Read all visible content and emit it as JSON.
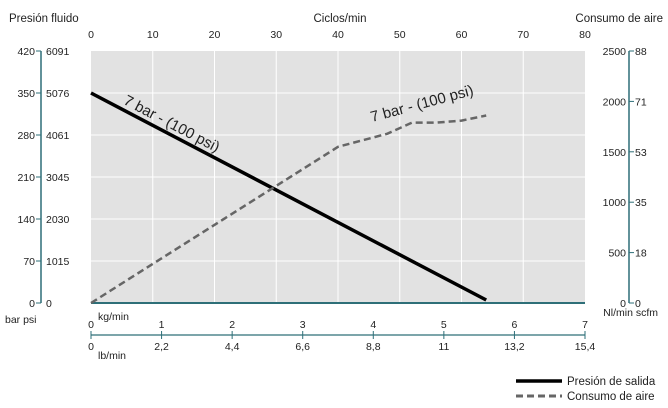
{
  "chart_data": {
    "type": "line",
    "headers": {
      "left": "Presión fluido",
      "top": "Ciclos/min",
      "right": "Consumo de aire"
    },
    "units": {
      "left_bottom": "bar psi",
      "kg": "kg/min",
      "lb": "lb/min",
      "right_bottom": "Nl/min scfm"
    },
    "axes": {
      "cycles": {
        "min": 0,
        "max": 80,
        "ticks": [
          "0",
          "10",
          "20",
          "30",
          "40",
          "50",
          "60",
          "70",
          "80"
        ]
      },
      "bar": {
        "min": 0,
        "max": 420,
        "ticks": [
          "0",
          "70",
          "140",
          "210",
          "280",
          "350",
          "420"
        ]
      },
      "psi": {
        "ticks": [
          "0",
          "1015",
          "2030",
          "3045",
          "4061",
          "5076",
          "6091"
        ]
      },
      "nl_min": {
        "min": 0,
        "max": 2500,
        "ticks": [
          "0",
          "500",
          "1000",
          "1500",
          "2000",
          "2500"
        ]
      },
      "scfm": {
        "ticks": [
          "0",
          "18",
          "35",
          "53",
          "71",
          "88"
        ]
      },
      "kg_min": {
        "min": 0,
        "max": 7,
        "ticks": [
          "0",
          "1",
          "2",
          "3",
          "4",
          "5",
          "6",
          "7"
        ]
      },
      "lb_min": {
        "ticks": [
          "0",
          "2,2",
          "4,4",
          "6,6",
          "8,8",
          "11",
          "13,2",
          "15,4"
        ]
      }
    },
    "series": [
      {
        "name": "Presión de salida",
        "label": "7 bar - (100 psi)",
        "axis": "bar",
        "color": "#000000",
        "style": "solid",
        "x": [
          0,
          64
        ],
        "y": [
          350,
          5
        ]
      },
      {
        "name": "Consumo de aire",
        "label": "7 bar - (100 psi)",
        "axis": "nl_min",
        "color": "#666666",
        "style": "dashed",
        "x": [
          0,
          40,
          48,
          52,
          56,
          60,
          64
        ],
        "y": [
          0,
          1550,
          1680,
          1790,
          1790,
          1810,
          1860
        ]
      }
    ],
    "legend": {
      "position": "bottom-right",
      "items": [
        {
          "label": "Presión de salida",
          "color": "#000000",
          "style": "solid"
        },
        {
          "label": "Consumo de aire",
          "color": "#666666",
          "style": "dashed"
        }
      ]
    },
    "plot_background": "#e2e2e2",
    "axis_color": "#2e6f78",
    "grid": true
  }
}
